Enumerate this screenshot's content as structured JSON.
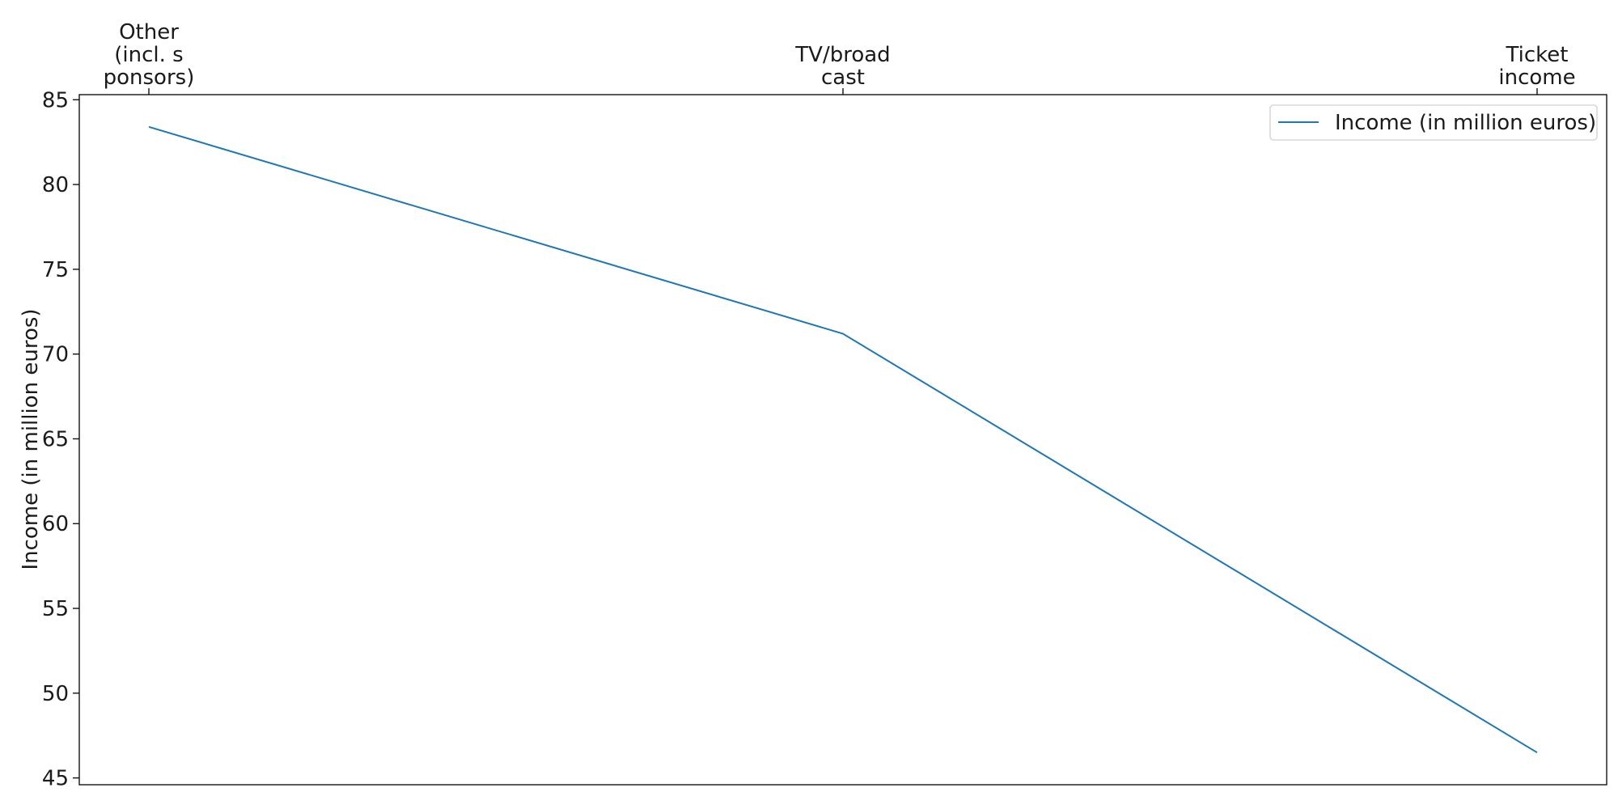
{
  "chart_data": {
    "type": "line",
    "title": "",
    "xlabel": "",
    "ylabel": "Income (in million euros)",
    "x_axis_position": "top",
    "categories": [
      [
        "Other",
        "(incl. s",
        "ponsors)"
      ],
      [
        "TV/broad",
        "cast"
      ],
      [
        "Ticket",
        "income"
      ]
    ],
    "series": [
      {
        "name": "Income (in million euros)",
        "values": [
          83.4,
          71.2,
          46.5
        ],
        "color": "#1f77b4"
      }
    ],
    "ylim": [
      44.6,
      85.3
    ],
    "yticks": [
      45,
      50,
      55,
      60,
      65,
      70,
      75,
      80,
      85
    ],
    "grid": false,
    "legend_position": "top-right"
  }
}
